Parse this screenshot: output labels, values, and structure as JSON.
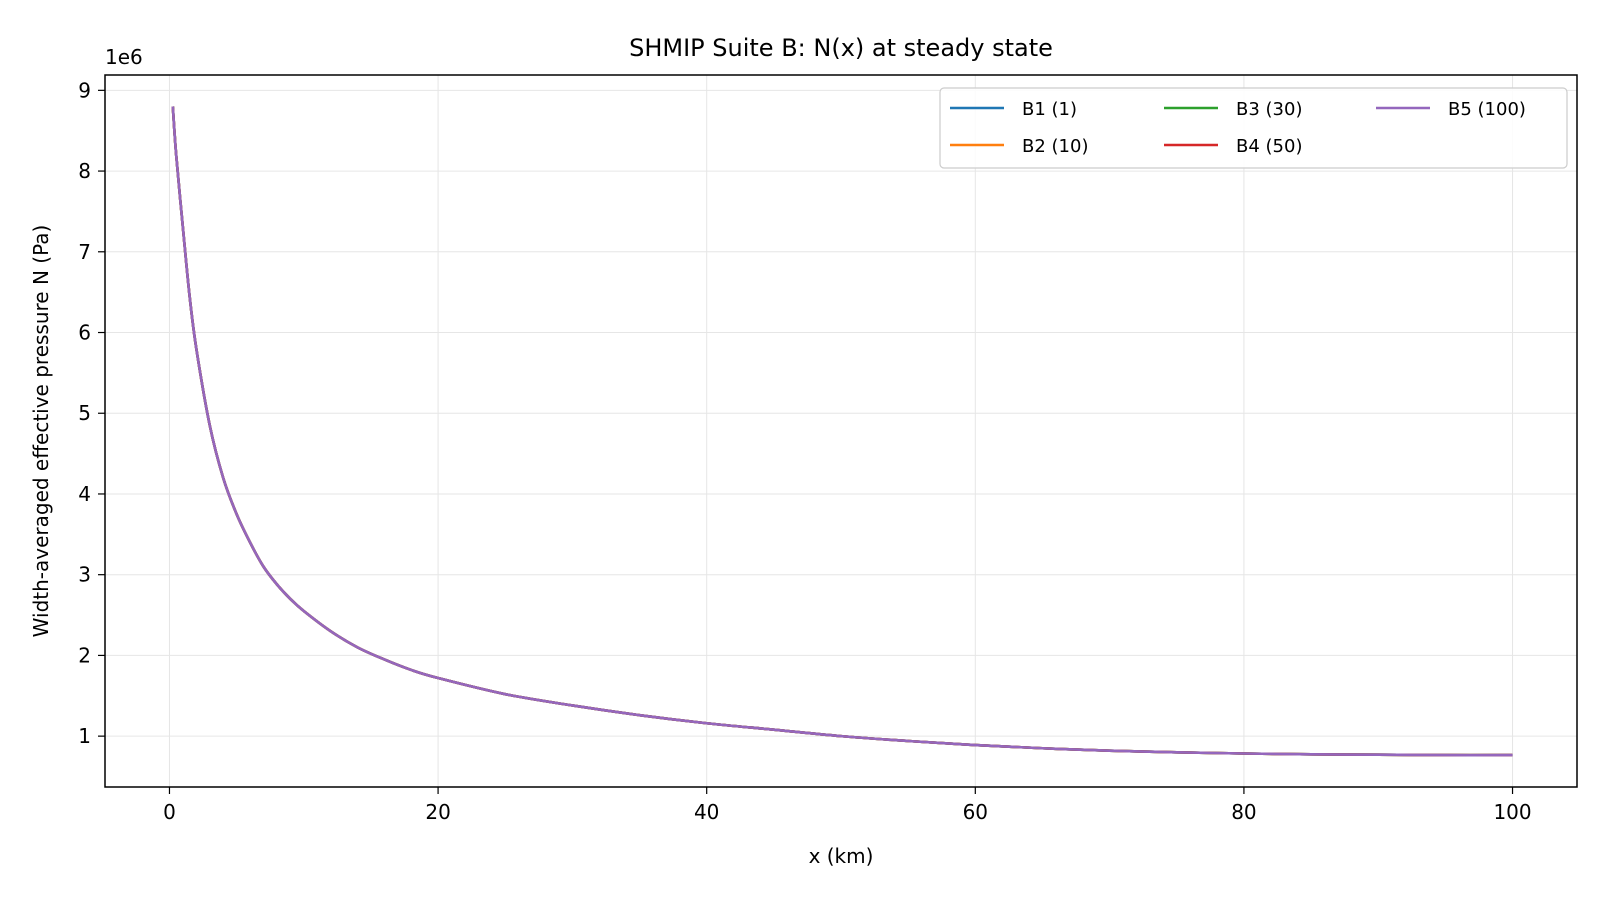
{
  "chart_data": {
    "type": "line",
    "title": "SHMIP Suite B: N(x) at steady state",
    "xlabel": "x (km)",
    "ylabel": "Width-averaged effective pressure N (Pa)",
    "y_offset_text": "1e6",
    "xlim": [
      -4.8,
      104.8
    ],
    "ylim": [
      0.37,
      9.19
    ],
    "y_scale_note": "values in units of 1e6 Pa",
    "xticks": [
      0,
      20,
      40,
      60,
      80,
      100
    ],
    "yticks": [
      1,
      2,
      3,
      4,
      5,
      6,
      7,
      8,
      9
    ],
    "grid": true,
    "legend": {
      "placement": "top-right",
      "columns": 3
    },
    "x": [
      0.25,
      0.5,
      1,
      1.5,
      2,
      3,
      4,
      5,
      6,
      7,
      8,
      9,
      10,
      12,
      14,
      16,
      18,
      20,
      25,
      30,
      35,
      40,
      45,
      50,
      55,
      60,
      65,
      70,
      75,
      80,
      85,
      90,
      95,
      100
    ],
    "series": [
      {
        "name": "B1 (1)",
        "color": "#1f77b4",
        "values": [
          8.8,
          8.2,
          7.3,
          6.45,
          5.8,
          4.85,
          4.2,
          3.75,
          3.4,
          3.1,
          2.88,
          2.7,
          2.55,
          2.3,
          2.1,
          1.95,
          1.82,
          1.72,
          1.52,
          1.38,
          1.26,
          1.16,
          1.08,
          1.0,
          0.94,
          0.89,
          0.85,
          0.82,
          0.8,
          0.785,
          0.775,
          0.77,
          0.765,
          0.765
        ]
      },
      {
        "name": "B2 (10)",
        "color": "#ff7f0e",
        "values": [
          8.8,
          8.2,
          7.3,
          6.45,
          5.8,
          4.85,
          4.2,
          3.75,
          3.4,
          3.1,
          2.88,
          2.7,
          2.55,
          2.3,
          2.1,
          1.95,
          1.82,
          1.72,
          1.52,
          1.38,
          1.26,
          1.16,
          1.08,
          1.0,
          0.94,
          0.89,
          0.85,
          0.82,
          0.8,
          0.785,
          0.775,
          0.77,
          0.765,
          0.765
        ]
      },
      {
        "name": "B3 (30)",
        "color": "#2ca02c",
        "values": [
          8.8,
          8.2,
          7.3,
          6.45,
          5.8,
          4.85,
          4.2,
          3.75,
          3.4,
          3.1,
          2.88,
          2.7,
          2.55,
          2.3,
          2.1,
          1.95,
          1.82,
          1.72,
          1.52,
          1.38,
          1.26,
          1.16,
          1.08,
          1.0,
          0.94,
          0.89,
          0.85,
          0.82,
          0.8,
          0.785,
          0.775,
          0.77,
          0.765,
          0.765
        ]
      },
      {
        "name": "B4 (50)",
        "color": "#d62728",
        "values": [
          8.8,
          8.2,
          7.3,
          6.45,
          5.8,
          4.85,
          4.2,
          3.75,
          3.4,
          3.1,
          2.88,
          2.7,
          2.55,
          2.3,
          2.1,
          1.95,
          1.82,
          1.72,
          1.52,
          1.38,
          1.26,
          1.16,
          1.08,
          1.0,
          0.94,
          0.89,
          0.85,
          0.82,
          0.8,
          0.785,
          0.775,
          0.77,
          0.765,
          0.765
        ]
      },
      {
        "name": "B5 (100)",
        "color": "#9467bd",
        "values": [
          8.8,
          8.2,
          7.3,
          6.45,
          5.8,
          4.85,
          4.2,
          3.75,
          3.4,
          3.1,
          2.88,
          2.7,
          2.55,
          2.3,
          2.1,
          1.95,
          1.82,
          1.72,
          1.52,
          1.38,
          1.26,
          1.16,
          1.08,
          1.0,
          0.94,
          0.89,
          0.85,
          0.82,
          0.8,
          0.785,
          0.775,
          0.77,
          0.765,
          0.765
        ]
      }
    ]
  }
}
